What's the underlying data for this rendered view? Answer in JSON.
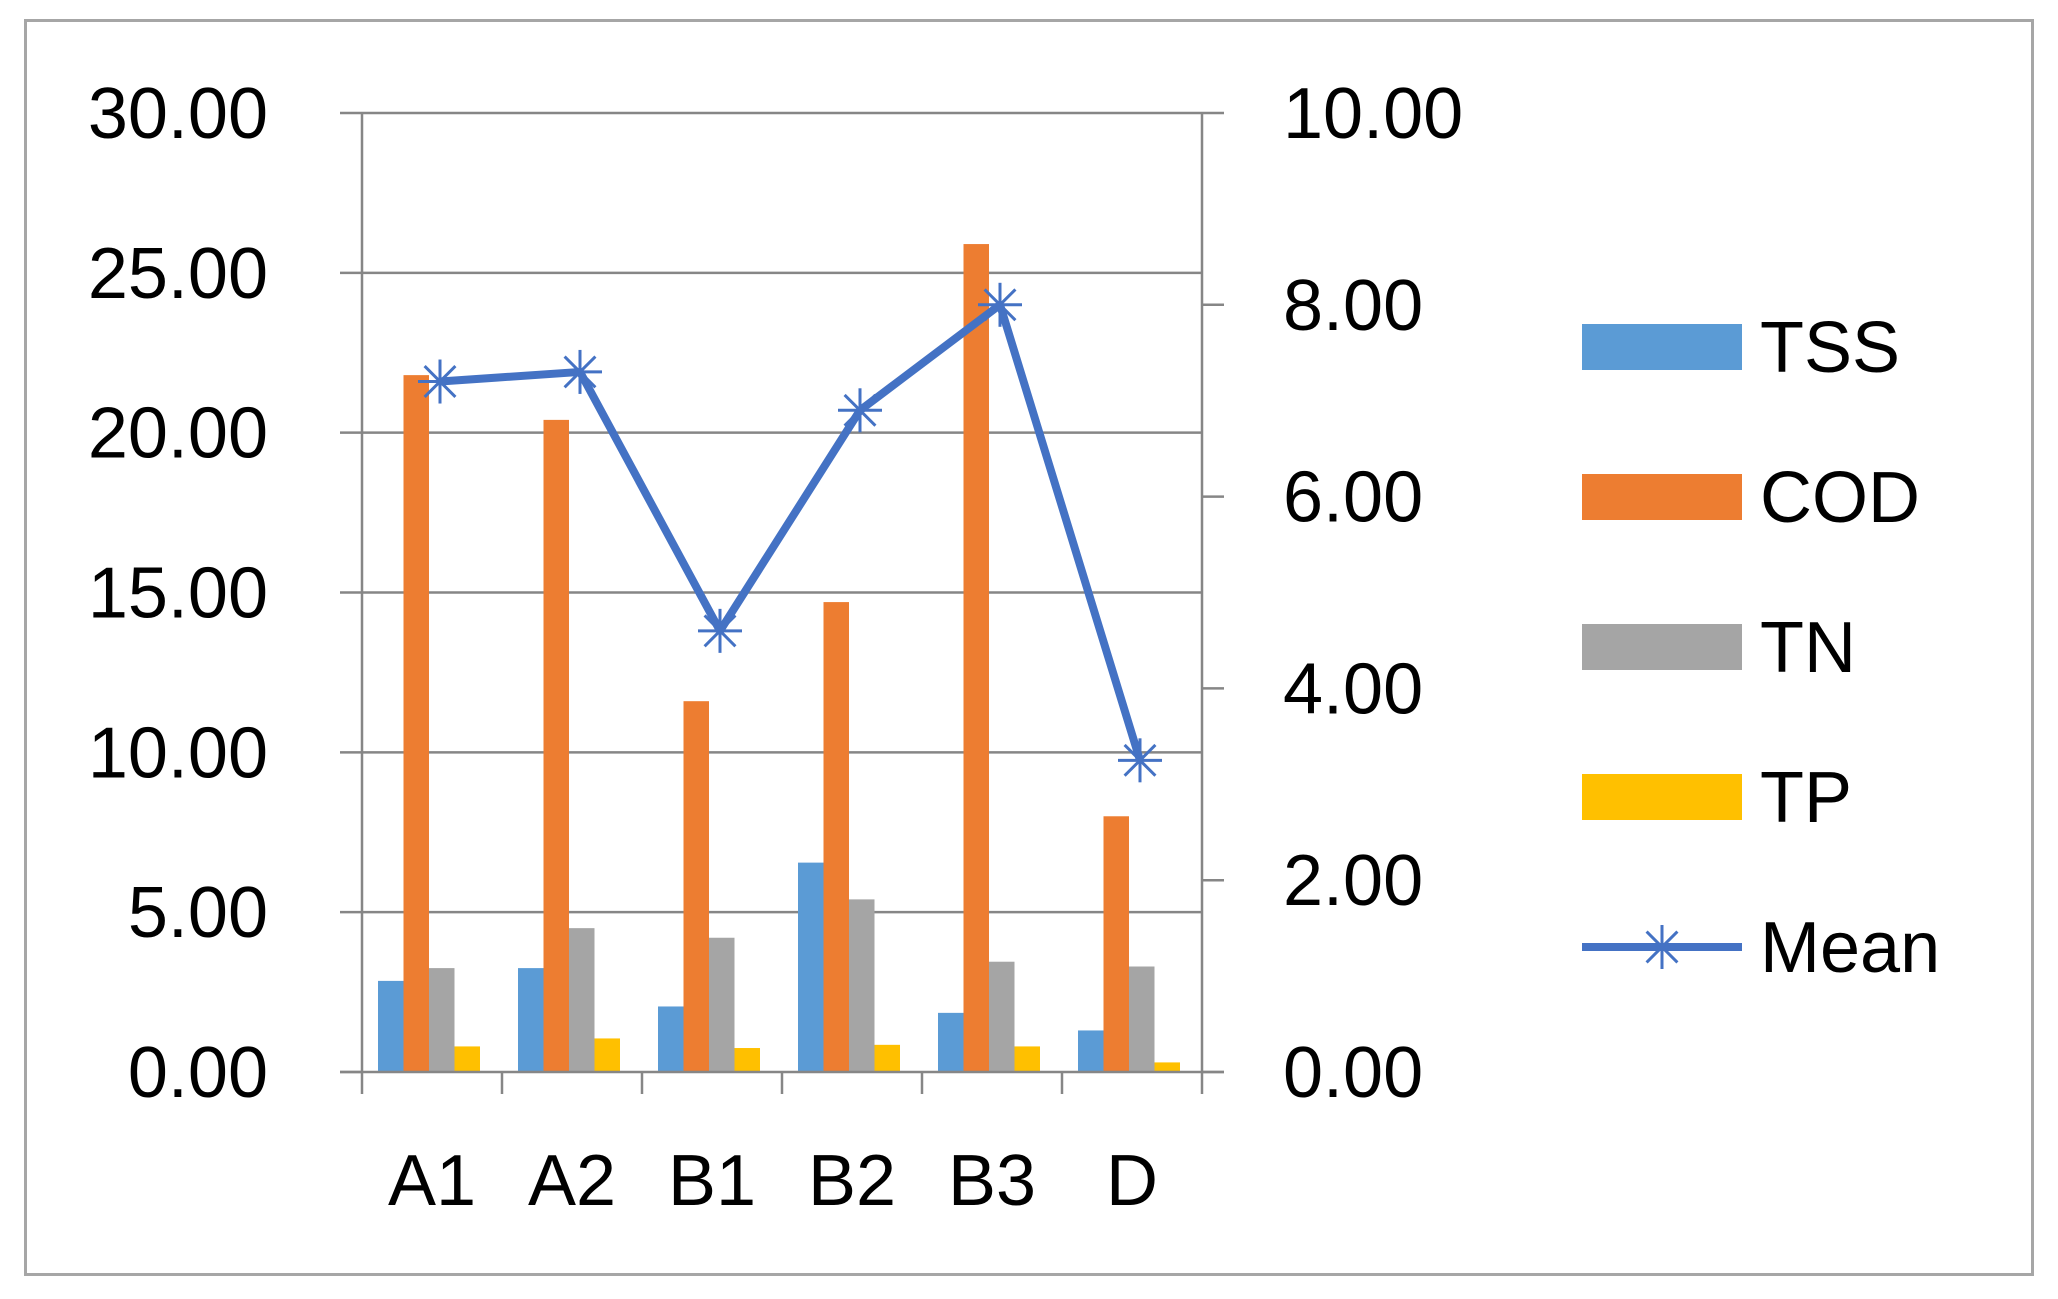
{
  "chart_data": {
    "type": "bar",
    "categories": [
      "A1",
      "A2",
      "B1",
      "B2",
      "B3",
      "D"
    ],
    "series": [
      {
        "name": "TSS",
        "axis": "left",
        "kind": "bar",
        "color": "#5b9bd5",
        "values": [
          2.85,
          3.25,
          2.05,
          6.55,
          1.85,
          1.3
        ]
      },
      {
        "name": "COD",
        "axis": "left",
        "kind": "bar",
        "color": "#ed7d31",
        "values": [
          21.8,
          20.4,
          11.6,
          14.7,
          25.9,
          8.0
        ]
      },
      {
        "name": "TN",
        "axis": "left",
        "kind": "bar",
        "color": "#a5a5a5",
        "values": [
          3.25,
          4.5,
          4.2,
          5.4,
          3.45,
          3.3
        ]
      },
      {
        "name": "TP",
        "axis": "left",
        "kind": "bar",
        "color": "#ffc000",
        "values": [
          0.8,
          1.05,
          0.75,
          0.85,
          0.8,
          0.3
        ]
      },
      {
        "name": "Mean",
        "axis": "right",
        "kind": "line",
        "marker": "asterisk",
        "color": "#4472c4",
        "values": [
          7.2,
          7.3,
          4.6,
          6.9,
          8.0,
          3.25
        ]
      }
    ],
    "y_left": {
      "min": 0,
      "max": 30,
      "ticks": [
        "0.00",
        "5.00",
        "10.00",
        "15.00",
        "20.00",
        "25.00",
        "30.00"
      ]
    },
    "y_right": {
      "min": 0,
      "max": 10,
      "ticks": [
        "0.00",
        "2.00",
        "4.00",
        "6.00",
        "8.00",
        "10.00"
      ]
    },
    "grid": true,
    "legend_position": "right",
    "title": "",
    "xlabel": "",
    "ylabel": ""
  }
}
